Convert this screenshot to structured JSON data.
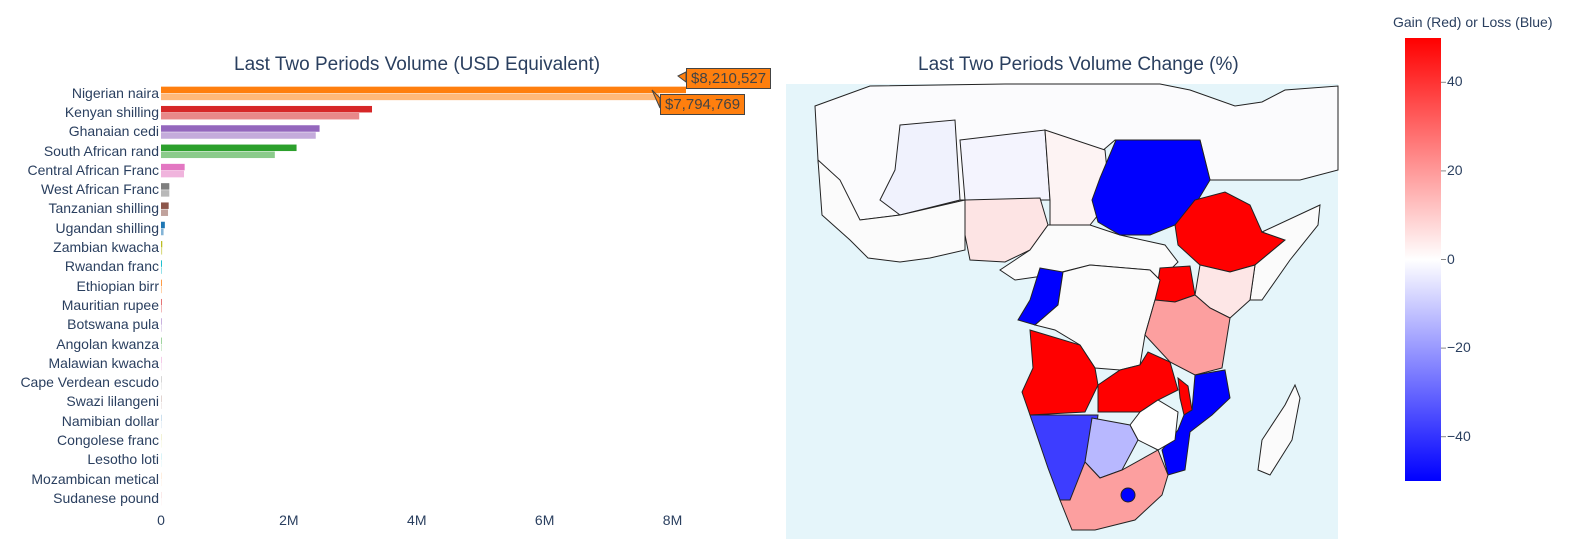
{
  "chart_data": [
    {
      "type": "bar",
      "orientation": "horizontal",
      "title": "Last Two Periods Volume (USD Equivalent)",
      "categories": [
        "Nigerian naira",
        "Kenyan shilling",
        "Ghanaian cedi",
        "South African rand",
        "Central African Franc",
        "West African Franc",
        "Tanzanian shilling",
        "Ugandan shilling",
        "Zambian kwacha",
        "Rwandan franc",
        "Ethiopian birr",
        "Mauritian rupee",
        "Botswana pula",
        "Angolan kwanza",
        "Malawian kwacha",
        "Cape Verdean escudo",
        "Swazi lilangeni",
        "Namibian dollar",
        "Congolese franc",
        "Lesotho loti",
        "Mozambican metical",
        "Sudanese pound"
      ],
      "series": [
        {
          "values": [
            8210527,
            3300000,
            2480000,
            2120000,
            370000,
            130000,
            120000,
            60000,
            20000,
            15000,
            12000,
            10000,
            8000,
            7000,
            6000,
            5000,
            4000,
            3500,
            3000,
            2500,
            2000,
            1500
          ]
        },
        {
          "values": [
            7794769,
            3100000,
            2420000,
            1780000,
            360000,
            130000,
            110000,
            40000,
            18000,
            13000,
            10000,
            9000,
            7000,
            6000,
            5000,
            4000,
            3500,
            3000,
            2500,
            2000,
            1500,
            1000
          ]
        }
      ],
      "colors": [
        "#ff7f0e",
        "#d62728",
        "#9467bd",
        "#2ca02c",
        "#e377c2",
        "#7f7f7f",
        "#8c564b",
        "#1f77b4",
        "#bcbd22",
        "#17becf",
        "#ff7f0e",
        "#d62728",
        "#9467bd",
        "#2ca02c",
        "#e377c2",
        "#7f7f7f",
        "#8c564b",
        "#1f77b4",
        "#bcbd22",
        "#17becf",
        "#ff7f0e",
        "#d62728"
      ],
      "xticks": [
        {
          "value": 0,
          "label": "0"
        },
        {
          "value": 2000000,
          "label": "2M"
        },
        {
          "value": 4000000,
          "label": "4M"
        },
        {
          "value": 6000000,
          "label": "6M"
        },
        {
          "value": 8000000,
          "label": "8M"
        }
      ],
      "xlim": [
        0,
        8210527
      ],
      "hover_labels": [
        "$8,210,527",
        "$7,794,769"
      ]
    },
    {
      "type": "choropleth",
      "title": "Last Two Periods Volume Change (%)",
      "colorbar_title": "Gain (Red) or Loss (Blue)",
      "colorscale": [
        "#0000ff",
        "#ffffff",
        "#ff0000"
      ],
      "zlim": [
        -50,
        50
      ],
      "colorbar_ticks": [
        {
          "value": 40,
          "label": "40"
        },
        {
          "value": 20,
          "label": "20"
        },
        {
          "value": 0,
          "label": "0"
        },
        {
          "value": -20,
          "label": "−20"
        },
        {
          "value": -40,
          "label": "−40"
        }
      ],
      "ocean_color": "#e5f5fa"
    }
  ]
}
